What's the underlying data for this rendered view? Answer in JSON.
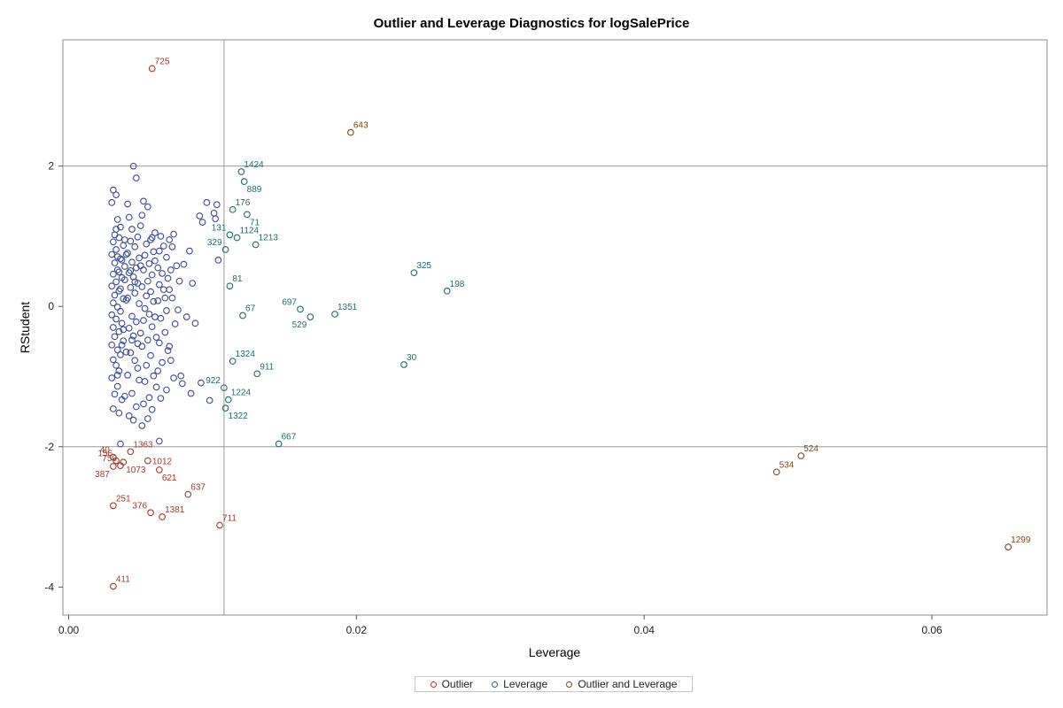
{
  "chart_data": {
    "type": "scatter",
    "title": "Outlier and Leverage Diagnostics for logSalePrice",
    "xlabel": "Leverage",
    "ylabel": "RStudent",
    "xlim": [
      -0.0004,
      0.068
    ],
    "ylim": [
      -4.4,
      3.8
    ],
    "x_ticks": [
      0.0,
      0.02,
      0.04,
      0.06
    ],
    "x_tick_labels": [
      "0.00",
      "0.02",
      "0.04",
      "0.06"
    ],
    "y_ticks": [
      2,
      0,
      -2,
      -4
    ],
    "y_tick_labels": [
      "2",
      "0",
      "-2",
      "-4"
    ],
    "reference_lines": {
      "x": [
        0.0108
      ],
      "y": [
        2,
        -2
      ]
    },
    "legend_position": "bottom",
    "colors": {
      "normal": "#3a4a98",
      "outlier": "#a33a2a",
      "leverage": "#1e6e6a",
      "outlier_and_leverage": "#7a4a1a"
    },
    "legend": [
      {
        "label": "Outlier",
        "class": "outlier"
      },
      {
        "label": "Leverage",
        "class": "leverage"
      },
      {
        "label": "Outlier and Leverage",
        "class": "outlier_and_leverage"
      }
    ],
    "labeled_points": [
      {
        "label": "725",
        "x": 0.0058,
        "y": 3.39,
        "class": "outlier",
        "pos": "ur"
      },
      {
        "label": "643",
        "x": 0.0196,
        "y": 2.48,
        "class": "outlier_and_leverage",
        "pos": "ur"
      },
      {
        "label": "1424",
        "x": 0.012,
        "y": 1.92,
        "class": "leverage",
        "pos": "ur"
      },
      {
        "label": "889",
        "x": 0.0122,
        "y": 1.78,
        "class": "leverage",
        "pos": "br"
      },
      {
        "label": "176",
        "x": 0.0114,
        "y": 1.38,
        "class": "leverage",
        "pos": "ur"
      },
      {
        "label": "71",
        "x": 0.0124,
        "y": 1.31,
        "class": "leverage",
        "pos": "br"
      },
      {
        "label": "131",
        "x": 0.0112,
        "y": 1.02,
        "class": "leverage",
        "pos": "ul"
      },
      {
        "label": "1124",
        "x": 0.0117,
        "y": 0.98,
        "class": "leverage",
        "pos": "ur"
      },
      {
        "label": "1213",
        "x": 0.013,
        "y": 0.88,
        "class": "leverage",
        "pos": "ur"
      },
      {
        "label": "329",
        "x": 0.0109,
        "y": 0.81,
        "class": "leverage",
        "pos": "ul"
      },
      {
        "label": "325",
        "x": 0.024,
        "y": 0.48,
        "class": "leverage",
        "pos": "ur"
      },
      {
        "label": "81",
        "x": 0.0112,
        "y": 0.29,
        "class": "leverage",
        "pos": "ur"
      },
      {
        "label": "198",
        "x": 0.0263,
        "y": 0.22,
        "class": "leverage",
        "pos": "ur"
      },
      {
        "label": "697",
        "x": 0.0161,
        "y": -0.04,
        "class": "leverage",
        "pos": "ul"
      },
      {
        "label": "1351",
        "x": 0.0185,
        "y": -0.11,
        "class": "leverage",
        "pos": "ur"
      },
      {
        "label": "67",
        "x": 0.0121,
        "y": -0.13,
        "class": "leverage",
        "pos": "ur"
      },
      {
        "label": "529",
        "x": 0.0168,
        "y": -0.15,
        "class": "leverage",
        "pos": "bl"
      },
      {
        "label": "30",
        "x": 0.0233,
        "y": -0.83,
        "class": "leverage",
        "pos": "ur"
      },
      {
        "label": "1324",
        "x": 0.0114,
        "y": -0.78,
        "class": "leverage",
        "pos": "ur"
      },
      {
        "label": "911",
        "x": 0.0131,
        "y": -0.96,
        "class": "leverage",
        "pos": "ur"
      },
      {
        "label": "922",
        "x": 0.0108,
        "y": -1.16,
        "class": "leverage",
        "pos": "ul"
      },
      {
        "label": "1224",
        "x": 0.0111,
        "y": -1.33,
        "class": "leverage",
        "pos": "ur"
      },
      {
        "label": "1322",
        "x": 0.0109,
        "y": -1.45,
        "class": "leverage",
        "pos": "br"
      },
      {
        "label": "667",
        "x": 0.0146,
        "y": -1.96,
        "class": "leverage",
        "pos": "ur"
      },
      {
        "label": "524",
        "x": 0.0509,
        "y": -2.13,
        "class": "outlier_and_leverage",
        "pos": "ur"
      },
      {
        "label": "534",
        "x": 0.0492,
        "y": -2.36,
        "class": "outlier_and_leverage",
        "pos": "ur"
      },
      {
        "label": "1299",
        "x": 0.0653,
        "y": -3.43,
        "class": "outlier_and_leverage",
        "pos": "ur"
      },
      {
        "label": "40",
        "x": 0.0031,
        "y": -2.15,
        "class": "outlier",
        "pos": "ul"
      },
      {
        "label": "1363",
        "x": 0.0043,
        "y": -2.07,
        "class": "outlier",
        "pos": "ur"
      },
      {
        "label": "156",
        "x": 0.0033,
        "y": -2.2,
        "class": "outlier",
        "pos": "ul"
      },
      {
        "label": "750",
        "x": 0.0036,
        "y": -2.27,
        "class": "outlier",
        "pos": "ul"
      },
      {
        "label": "1012",
        "x": 0.0055,
        "y": -2.2,
        "class": "outlier",
        "pos": "r"
      },
      {
        "label": "387",
        "x": 0.0031,
        "y": -2.28,
        "class": "outlier",
        "pos": "bl"
      },
      {
        "label": "1073",
        "x": 0.0038,
        "y": -2.22,
        "class": "outlier",
        "pos": "br"
      },
      {
        "label": "621",
        "x": 0.0063,
        "y": -2.33,
        "class": "outlier",
        "pos": "br"
      },
      {
        "label": "637",
        "x": 0.0083,
        "y": -2.68,
        "class": "outlier",
        "pos": "ur"
      },
      {
        "label": "251",
        "x": 0.0031,
        "y": -2.84,
        "class": "outlier",
        "pos": "ur"
      },
      {
        "label": "376",
        "x": 0.0057,
        "y": -2.94,
        "class": "outlier",
        "pos": "ul"
      },
      {
        "label": "1381",
        "x": 0.0065,
        "y": -3.0,
        "class": "outlier",
        "pos": "ur"
      },
      {
        "label": "711",
        "x": 0.0105,
        "y": -3.12,
        "class": "outlier",
        "pos": "ur"
      },
      {
        "label": "411",
        "x": 0.0031,
        "y": -3.99,
        "class": "outlier",
        "pos": "ur"
      }
    ],
    "points": [
      [
        0.0031,
        1.66
      ],
      [
        0.0033,
        1.59
      ],
      [
        0.003,
        1.48
      ],
      [
        0.0034,
        1.24
      ],
      [
        0.0036,
        1.13
      ],
      [
        0.0032,
        1.02
      ],
      [
        0.0035,
        0.98
      ],
      [
        0.0031,
        0.92
      ],
      [
        0.0038,
        0.87
      ],
      [
        0.0033,
        0.81
      ],
      [
        0.003,
        0.74
      ],
      [
        0.0036,
        0.68
      ],
      [
        0.0032,
        0.62
      ],
      [
        0.0039,
        0.57
      ],
      [
        0.0034,
        0.52
      ],
      [
        0.0031,
        0.46
      ],
      [
        0.0037,
        0.41
      ],
      [
        0.0033,
        0.35
      ],
      [
        0.003,
        0.29
      ],
      [
        0.0035,
        0.22
      ],
      [
        0.0032,
        0.16
      ],
      [
        0.0038,
        0.11
      ],
      [
        0.0031,
        0.05
      ],
      [
        0.0034,
        -0.01
      ],
      [
        0.0036,
        -0.07
      ],
      [
        0.003,
        -0.12
      ],
      [
        0.0033,
        -0.18
      ],
      [
        0.0037,
        -0.24
      ],
      [
        0.0031,
        -0.3
      ],
      [
        0.0035,
        -0.36
      ],
      [
        0.0032,
        -0.43
      ],
      [
        0.0038,
        -0.49
      ],
      [
        0.003,
        -0.55
      ],
      [
        0.0034,
        -0.62
      ],
      [
        0.0036,
        -0.69
      ],
      [
        0.0031,
        -0.76
      ],
      [
        0.0033,
        -0.84
      ],
      [
        0.0035,
        -0.92
      ],
      [
        0.003,
        -1.02
      ],
      [
        0.0034,
        -1.14
      ],
      [
        0.0032,
        -1.25
      ],
      [
        0.0037,
        -1.33
      ],
      [
        0.0031,
        -1.46
      ],
      [
        0.0035,
        -1.52
      ],
      [
        0.0041,
        1.46
      ],
      [
        0.0045,
        2.0
      ],
      [
        0.0047,
        1.83
      ],
      [
        0.0042,
        1.27
      ],
      [
        0.0044,
        1.1
      ],
      [
        0.0048,
        0.99
      ],
      [
        0.0043,
        0.93
      ],
      [
        0.0046,
        0.85
      ],
      [
        0.0041,
        0.76
      ],
      [
        0.0049,
        0.69
      ],
      [
        0.0044,
        0.63
      ],
      [
        0.0047,
        0.55
      ],
      [
        0.0042,
        0.48
      ],
      [
        0.0045,
        0.42
      ],
      [
        0.0048,
        0.33
      ],
      [
        0.0043,
        0.27
      ],
      [
        0.0046,
        0.19
      ],
      [
        0.0041,
        0.12
      ],
      [
        0.0049,
        0.04
      ],
      [
        0.0044,
        -0.14
      ],
      [
        0.0047,
        -0.22
      ],
      [
        0.0042,
        -0.31
      ],
      [
        0.0045,
        -0.42
      ],
      [
        0.0048,
        -0.53
      ],
      [
        0.0043,
        -0.66
      ],
      [
        0.0046,
        -0.77
      ],
      [
        0.0041,
        -0.98
      ],
      [
        0.0049,
        -1.05
      ],
      [
        0.0044,
        -1.24
      ],
      [
        0.0047,
        -1.43
      ],
      [
        0.0042,
        -1.56
      ],
      [
        0.0045,
        -1.62
      ],
      [
        0.0036,
        -1.96
      ],
      [
        0.0052,
        1.5
      ],
      [
        0.0055,
        1.42
      ],
      [
        0.0051,
        1.3
      ],
      [
        0.0057,
        0.95
      ],
      [
        0.0054,
        0.89
      ],
      [
        0.0059,
        0.78
      ],
      [
        0.0053,
        0.73
      ],
      [
        0.0056,
        0.61
      ],
      [
        0.0052,
        0.52
      ],
      [
        0.0058,
        0.45
      ],
      [
        0.0055,
        0.36
      ],
      [
        0.0051,
        0.28
      ],
      [
        0.0057,
        0.21
      ],
      [
        0.0054,
        0.15
      ],
      [
        0.0059,
        0.07
      ],
      [
        0.0053,
        -0.03
      ],
      [
        0.0056,
        -0.11
      ],
      [
        0.0052,
        -0.2
      ],
      [
        0.0058,
        -0.29
      ],
      [
        0.0055,
        -0.48
      ],
      [
        0.0051,
        -0.57
      ],
      [
        0.0057,
        -0.7
      ],
      [
        0.0054,
        -0.84
      ],
      [
        0.0059,
        -0.99
      ],
      [
        0.0053,
        -1.07
      ],
      [
        0.0056,
        -1.3
      ],
      [
        0.0052,
        -1.39
      ],
      [
        0.0058,
        -1.47
      ],
      [
        0.0055,
        -1.6
      ],
      [
        0.0051,
        -1.7
      ],
      [
        0.0064,
        1.0
      ],
      [
        0.0066,
        0.86
      ],
      [
        0.0063,
        0.79
      ],
      [
        0.0068,
        0.7
      ],
      [
        0.0062,
        0.55
      ],
      [
        0.0065,
        0.47
      ],
      [
        0.0069,
        0.4
      ],
      [
        0.0063,
        0.31
      ],
      [
        0.0066,
        0.24
      ],
      [
        0.0062,
        0.08
      ],
      [
        0.0068,
        -0.06
      ],
      [
        0.0064,
        -0.17
      ],
      [
        0.0067,
        -0.37
      ],
      [
        0.0063,
        -0.52
      ],
      [
        0.0069,
        -0.63
      ],
      [
        0.0065,
        -0.8
      ],
      [
        0.0062,
        -0.92
      ],
      [
        0.0068,
        -1.19
      ],
      [
        0.0064,
        -1.31
      ],
      [
        0.0063,
        -1.92
      ],
      [
        0.0073,
        1.03
      ],
      [
        0.0075,
        0.58
      ],
      [
        0.0071,
        0.52
      ],
      [
        0.0077,
        0.36
      ],
      [
        0.0072,
        0.12
      ],
      [
        0.0076,
        -0.05
      ],
      [
        0.0074,
        -0.25
      ],
      [
        0.0071,
        -0.77
      ],
      [
        0.0078,
        -0.99
      ],
      [
        0.0073,
        -1.02
      ],
      [
        0.0079,
        -1.1
      ],
      [
        0.0084,
        0.79
      ],
      [
        0.0086,
        0.33
      ],
      [
        0.0082,
        -0.15
      ],
      [
        0.0088,
        -0.24
      ],
      [
        0.0085,
        -1.24
      ],
      [
        0.0091,
        1.29
      ],
      [
        0.0093,
        1.2
      ],
      [
        0.0092,
        -1.09
      ],
      [
        0.0096,
        1.48
      ],
      [
        0.0098,
        -1.34
      ],
      [
        0.0101,
        1.33
      ],
      [
        0.0103,
        1.45
      ],
      [
        0.0102,
        1.25
      ],
      [
        0.0104,
        0.66
      ],
      [
        0.0033,
        1.1
      ],
      [
        0.0039,
        0.95
      ],
      [
        0.004,
        0.74
      ],
      [
        0.0037,
        0.66
      ],
      [
        0.0039,
        0.38
      ],
      [
        0.004,
        0.09
      ],
      [
        0.0038,
        -0.33
      ],
      [
        0.004,
        -0.65
      ],
      [
        0.0039,
        -1.28
      ],
      [
        0.005,
        1.15
      ],
      [
        0.005,
        0.58
      ],
      [
        0.005,
        -0.38
      ],
      [
        0.006,
        0.65
      ],
      [
        0.006,
        -0.15
      ],
      [
        0.0061,
        -0.44
      ],
      [
        0.007,
        0.95
      ],
      [
        0.007,
        0.24
      ],
      [
        0.007,
        -0.57
      ],
      [
        0.008,
        0.6
      ],
      [
        0.0035,
        0.49
      ],
      [
        0.0034,
        0.71
      ],
      [
        0.0036,
        0.25
      ],
      [
        0.0037,
        -0.55
      ],
      [
        0.0034,
        -0.98
      ],
      [
        0.0043,
        0.51
      ],
      [
        0.0046,
        0.35
      ],
      [
        0.0044,
        -0.48
      ],
      [
        0.0048,
        -0.88
      ],
      [
        0.006,
        1.05
      ],
      [
        0.0058,
        0.98
      ],
      [
        0.0061,
        -1.15
      ],
      [
        0.0067,
        0.12
      ],
      [
        0.0072,
        0.85
      ]
    ]
  }
}
